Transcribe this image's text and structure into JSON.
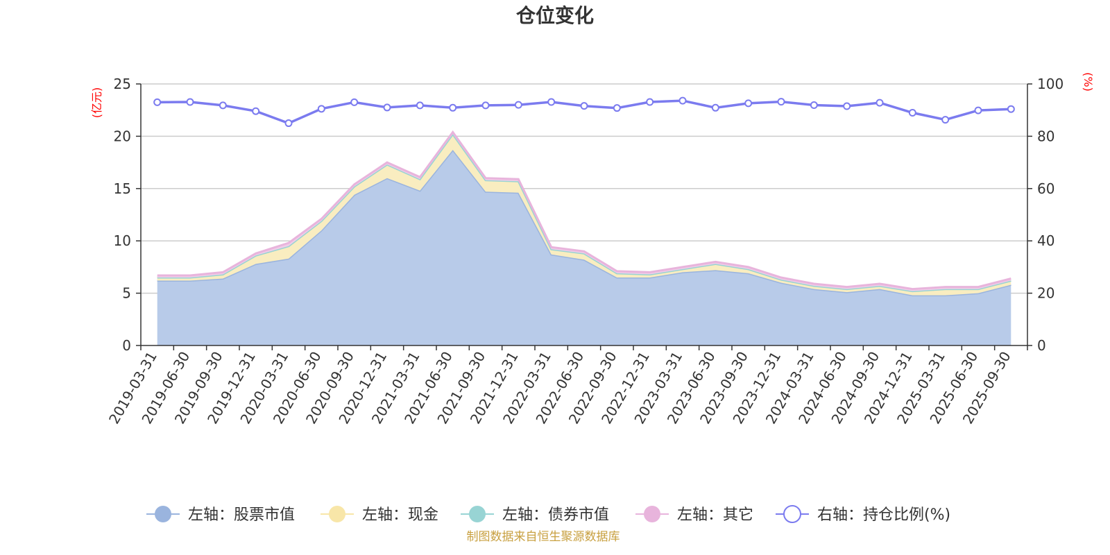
{
  "chart_data": {
    "type": "area",
    "title": "仓位变化",
    "left_axis_unit": "(亿元)",
    "right_axis_unit": "(%)",
    "left_ylim": [
      0,
      25
    ],
    "left_ticks": [
      0,
      5,
      10,
      15,
      20,
      25
    ],
    "right_ylim": [
      0,
      100
    ],
    "right_ticks": [
      0,
      20,
      40,
      60,
      80,
      100
    ],
    "categories": [
      "2019-03-31",
      "2019-06-30",
      "2019-09-30",
      "2019-12-31",
      "2020-03-31",
      "2020-06-30",
      "2020-09-30",
      "2020-12-31",
      "2021-03-31",
      "2021-06-30",
      "2021-09-30",
      "2021-12-31",
      "2022-03-31",
      "2022-06-30",
      "2022-09-30",
      "2022-12-31",
      "2023-03-31",
      "2023-06-30",
      "2023-09-30",
      "2023-12-31",
      "2024-03-31",
      "2024-06-30",
      "2024-09-30",
      "2024-12-31",
      "2025-03-31",
      "2025-06-30",
      "2025-09-30"
    ],
    "series": [
      {
        "name": "左轴：股票市值",
        "axis": "left",
        "type": "area",
        "color": "#9ab4de",
        "fill": "#b8cbe9",
        "values": [
          6.2,
          6.2,
          6.4,
          7.8,
          8.3,
          11.0,
          14.4,
          16.0,
          14.8,
          18.7,
          14.7,
          14.6,
          8.7,
          8.2,
          6.5,
          6.5,
          7.0,
          7.2,
          6.9,
          6.0,
          5.4,
          5.1,
          5.4,
          4.8,
          4.8,
          5.0,
          5.8
        ]
      },
      {
        "name": "左轴：现金",
        "axis": "left",
        "type": "area",
        "color": "#f8e6a8",
        "fill": "#f9edc0",
        "values": [
          0.3,
          0.3,
          0.4,
          0.8,
          1.2,
          0.9,
          0.8,
          1.3,
          1.1,
          1.5,
          1.1,
          1.1,
          0.5,
          0.6,
          0.4,
          0.3,
          0.3,
          0.6,
          0.4,
          0.3,
          0.3,
          0.3,
          0.3,
          0.4,
          0.6,
          0.4,
          0.4
        ]
      },
      {
        "name": "左轴：债券市值",
        "axis": "left",
        "type": "area",
        "color": "#98d4d4",
        "fill": "#bfe3e3",
        "values": [
          0,
          0,
          0,
          0,
          0,
          0,
          0,
          0,
          0,
          0,
          0,
          0,
          0,
          0,
          0,
          0,
          0,
          0,
          0,
          0,
          0,
          0,
          0,
          0,
          0,
          0,
          0
        ]
      },
      {
        "name": "左轴：其它",
        "axis": "left",
        "type": "area",
        "color": "#e8b4dc",
        "fill": "#f0cde8",
        "values": [
          0.2,
          0.2,
          0.2,
          0.2,
          0.3,
          0.2,
          0.2,
          0.2,
          0.2,
          0.2,
          0.2,
          0.2,
          0.2,
          0.2,
          0.2,
          0.2,
          0.2,
          0.2,
          0.2,
          0.2,
          0.2,
          0.2,
          0.2,
          0.2,
          0.2,
          0.2,
          0.2
        ]
      },
      {
        "name": "右轴：持仓比例(%)",
        "axis": "right",
        "type": "line",
        "color": "#7b7bef",
        "values": [
          93.0,
          93.1,
          91.8,
          89.6,
          85.0,
          90.5,
          93.0,
          91.0,
          91.8,
          90.9,
          91.8,
          92.0,
          93.1,
          91.6,
          90.8,
          93.1,
          93.6,
          90.9,
          92.6,
          93.2,
          91.9,
          91.5,
          92.8,
          89.0,
          86.3,
          89.9,
          90.4
        ]
      }
    ],
    "source_note": "制图数据来自恒生聚源数据库"
  }
}
